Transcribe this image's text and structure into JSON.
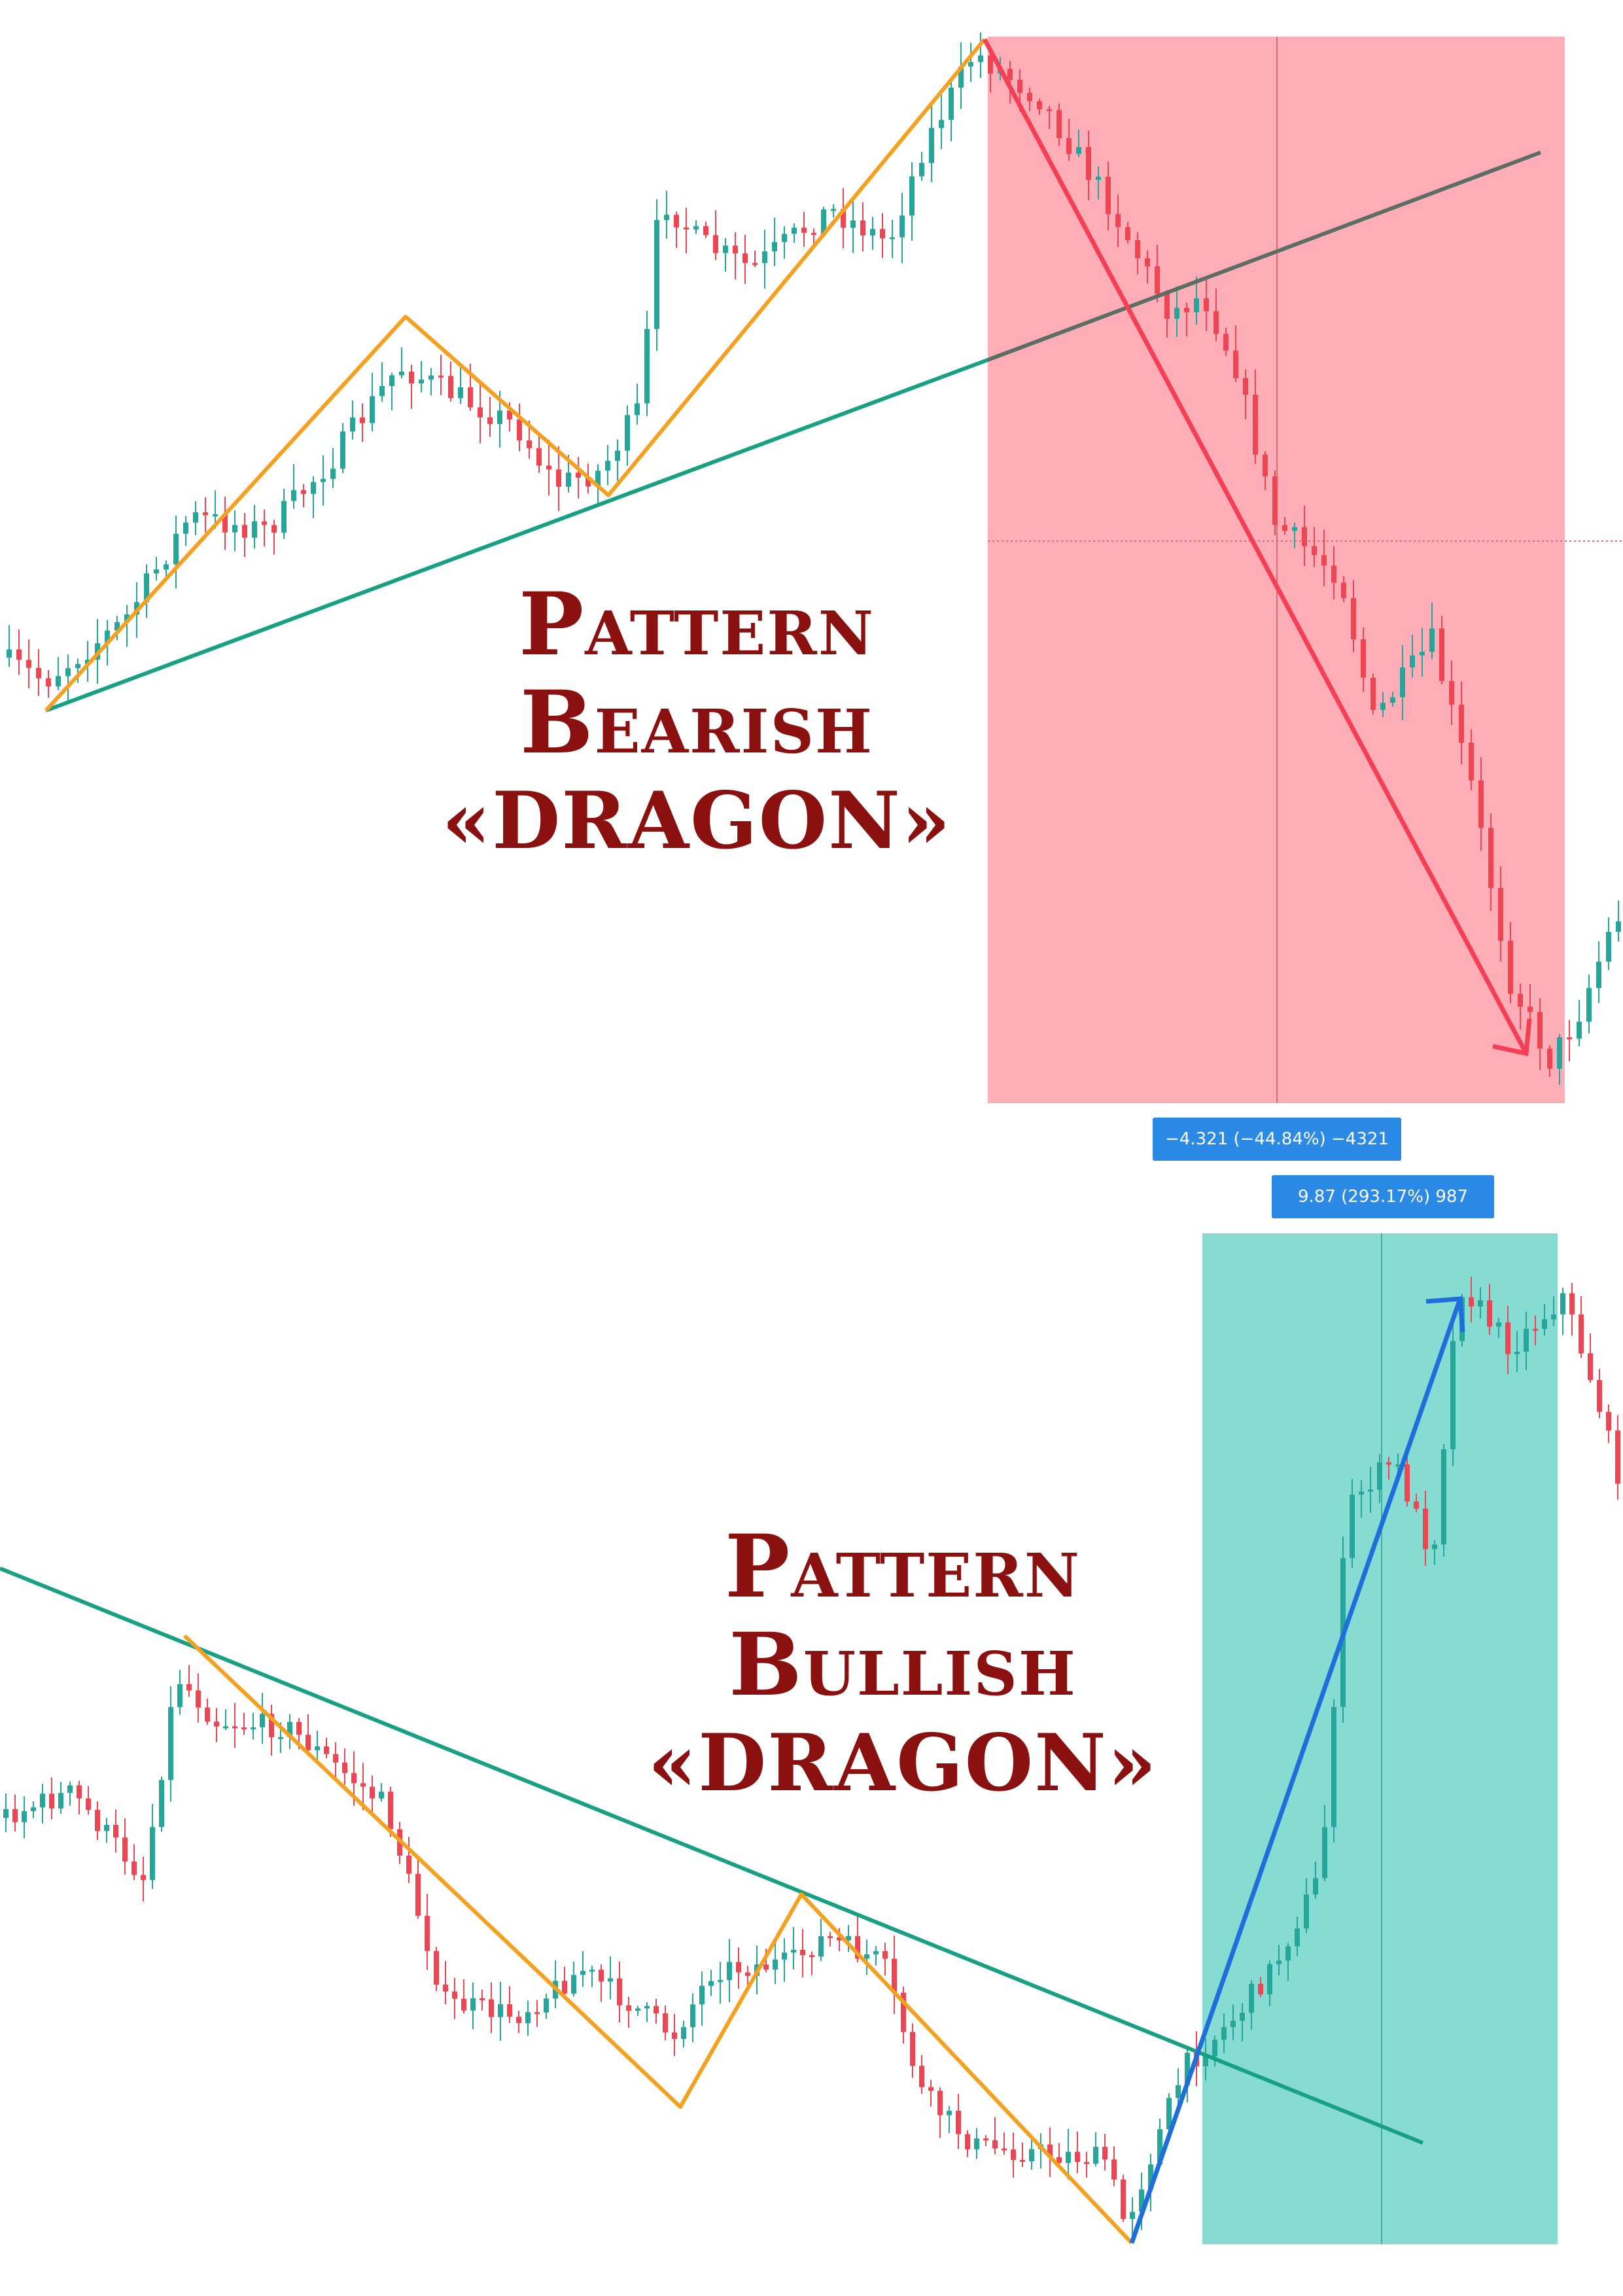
{
  "colors": {
    "bull_candle": "#26a69a",
    "bear_candle": "#ef4451",
    "zigzag": "#f5a01e",
    "trendline": "#18a085",
    "trendline_dark": "#5a6e66",
    "bear_zone": "#ffaeb8",
    "bull_zone": "#86dcd2",
    "bear_arrow": "#f43f55",
    "bull_arrow": "#1e6fdc",
    "title": "#8b1010",
    "badge": "#2b8ae6"
  },
  "titles": {
    "bearish": {
      "line1": "Pattern",
      "line2": "Bearish",
      "line3": "«DRAGON»"
    },
    "bullish": {
      "line1": "Pattern",
      "line2": "Bullish",
      "line3": "«DRAGON»"
    }
  },
  "measurements": {
    "bearish": "−4.321 (−44.84%) −4321",
    "bullish": "9.87 (293.17%) 987"
  },
  "chart_data": [
    {
      "type": "candlestick",
      "pattern": "Bearish Dragon",
      "zigzag": [
        {
          "x": 0.03,
          "y": 0.0
        },
        {
          "x": 0.25,
          "y": 0.62
        },
        {
          "x": 0.375,
          "y": 0.35
        },
        {
          "x": 0.61,
          "y": 1.0
        }
      ],
      "trendline": {
        "from": {
          "x": 0.03,
          "y": 0.0
        },
        "to": {
          "x": 0.95,
          "y": 0.85
        }
      },
      "measured_move": {
        "change": -4.321,
        "percent": -44.84,
        "ticks": -4321
      }
    },
    {
      "type": "candlestick",
      "pattern": "Bullish Dragon",
      "zigzag": [
        {
          "x": 0.115,
          "y": 1.0
        },
        {
          "x": 0.42,
          "y": 0.33
        },
        {
          "x": 0.495,
          "y": 0.67
        },
        {
          "x": 0.7,
          "y": 0.0
        }
      ],
      "trendline": {
        "from": {
          "x": 0.0,
          "y": 1.1
        },
        "to": {
          "x": 0.88,
          "y": 0.22
        }
      },
      "measured_move": {
        "change": 9.87,
        "percent": 293.17,
        "ticks": 987
      }
    }
  ]
}
